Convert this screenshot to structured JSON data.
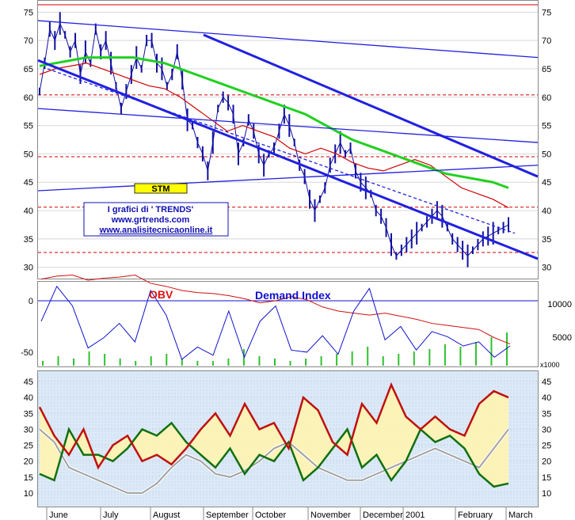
{
  "chart_data": [
    {
      "type": "line",
      "panel": "price",
      "ylim": [
        28,
        77
      ],
      "yticks": [
        30,
        35,
        40,
        45,
        50,
        55,
        60,
        65,
        70,
        75
      ],
      "months": [
        "June",
        "July",
        "August",
        "September",
        "October",
        "November",
        "December",
        "2001",
        "February",
        "March"
      ],
      "annotations": {
        "ticker": "STM",
        "credit_line1": "I grafici di ' TRENDS'",
        "credit_line2": "www.grtrends.com",
        "credit_line3": "www.analisitecnicaonline.it"
      },
      "colors": {
        "price": "#1010a0",
        "ma_short": "#d00000",
        "ma_long": "#20d020",
        "trendline": "#2020e0",
        "support": "#d00000"
      },
      "horizontal_levels": [
        76.3,
        60.4,
        49.5,
        40.6,
        32.6
      ],
      "price_x": [
        0,
        3,
        6,
        9,
        12,
        15,
        18,
        21,
        24,
        27,
        30,
        33,
        36,
        39,
        42,
        45,
        48,
        51,
        54,
        57,
        60,
        63,
        66,
        69,
        72,
        75,
        78,
        81,
        84,
        87,
        90,
        93,
        96,
        99,
        102,
        105,
        108,
        111,
        114,
        117,
        120,
        123,
        126,
        129,
        132,
        135,
        138,
        141,
        144,
        147,
        150,
        153,
        156,
        159,
        162,
        165,
        168,
        171,
        174,
        177,
        180,
        183,
        186,
        189,
        192,
        195,
        198,
        201,
        204,
        207,
        210,
        213,
        216,
        219,
        222,
        225,
        228,
        231,
        234,
        237,
        240,
        243,
        246,
        249,
        252,
        255,
        258,
        261,
        264,
        267,
        270,
        273,
        276
      ],
      "price_y": [
        61,
        66,
        72,
        70,
        73,
        71,
        68,
        70,
        64,
        68,
        66,
        72,
        68,
        70,
        66,
        62,
        58,
        61,
        64,
        67,
        65,
        70,
        70,
        66,
        65,
        62,
        64,
        68,
        63,
        56,
        55,
        52,
        50,
        47,
        52,
        58,
        60,
        59,
        57,
        50,
        52,
        56,
        54,
        50,
        48,
        50,
        51,
        54,
        57,
        55,
        52,
        48,
        46,
        42,
        40,
        42,
        44,
        48,
        50,
        52,
        50,
        51,
        47,
        45,
        44,
        43,
        40,
        39,
        37,
        34,
        32,
        33,
        34,
        35,
        36,
        37,
        38,
        39,
        40,
        39,
        37,
        35,
        34,
        33,
        32,
        33,
        34,
        35,
        35.5,
        36,
        36.5,
        37,
        37.5
      ],
      "ma_long": [
        65.5,
        66,
        66.5,
        67,
        67,
        67,
        67,
        66.5,
        66,
        65,
        64,
        63,
        62,
        61,
        60,
        59,
        58,
        57,
        55.5,
        54,
        52.5,
        51.5,
        50.5,
        49.5,
        48.5,
        47.5,
        46.5,
        46,
        45.5,
        45,
        44
      ],
      "ma_short": [
        64,
        65,
        65.5,
        66,
        65,
        64,
        63,
        62,
        61.5,
        60,
        58,
        56,
        54,
        55,
        54,
        53,
        51,
        50,
        51,
        50,
        48.5,
        47.5,
        47,
        48,
        49,
        48,
        46,
        44,
        43,
        42,
        40.5
      ]
    },
    {
      "type": "line",
      "panel": "indicators",
      "yticks_left": [
        0,
        -50
      ],
      "yticks_right": [
        10000,
        5000
      ],
      "right_unit": "x1000",
      "series": [
        {
          "name": "OBV",
          "color": "#d01010",
          "values": [
            21,
            24,
            25,
            20,
            22,
            23,
            25,
            17,
            14,
            10,
            8,
            7,
            5,
            2,
            -2,
            0,
            4,
            1,
            -6,
            -10,
            -12,
            -14,
            -12,
            -15,
            -18,
            -22,
            -24,
            -26,
            -28,
            -36,
            -42
          ]
        },
        {
          "name": "Demand Index",
          "color": "#1010d0",
          "values": [
            -20,
            14,
            -5,
            -46,
            -36,
            -22,
            -40,
            10,
            -14,
            -57,
            -45,
            -53,
            -10,
            -55,
            -20,
            -5,
            -48,
            -50,
            -34,
            -52,
            -10,
            12,
            -38,
            -25,
            -48,
            -30,
            -35,
            -44,
            -40,
            -55,
            -44
          ]
        }
      ],
      "volume": [
        2,
        4,
        3,
        6,
        5,
        3,
        2,
        4,
        5,
        3,
        2,
        2,
        3,
        7,
        4,
        3,
        2,
        3,
        4,
        5,
        6,
        8,
        4,
        5,
        6,
        7,
        9,
        8,
        10,
        12,
        14
      ]
    },
    {
      "type": "line",
      "panel": "oscillator",
      "ylim": [
        6,
        48
      ],
      "yticks": [
        10,
        15,
        20,
        25,
        30,
        35,
        40,
        45
      ],
      "series": [
        {
          "color": "#c01010",
          "values": [
            37,
            28,
            22,
            30,
            18,
            25,
            28,
            20,
            22,
            19,
            24,
            30,
            35,
            28,
            38,
            30,
            32,
            24,
            40,
            36,
            26,
            22,
            38,
            32,
            44,
            34,
            30,
            34,
            30,
            28,
            38,
            42,
            40
          ]
        },
        {
          "color": "#107010",
          "values": [
            16,
            14,
            30,
            22,
            22,
            20,
            24,
            30,
            28,
            32,
            26,
            22,
            18,
            24,
            16,
            22,
            20,
            26,
            14,
            18,
            24,
            30,
            18,
            22,
            14,
            20,
            30,
            26,
            28,
            24,
            16,
            12,
            13
          ]
        },
        {
          "color": "#a0a0a0",
          "values": [
            30,
            26,
            18,
            16,
            14,
            12,
            10,
            10,
            13,
            18,
            22,
            20,
            16,
            15,
            17,
            20,
            24,
            26,
            22,
            18,
            16,
            14,
            14,
            16,
            18,
            20,
            22,
            24,
            22,
            20,
            18,
            24,
            30
          ]
        }
      ]
    }
  ]
}
